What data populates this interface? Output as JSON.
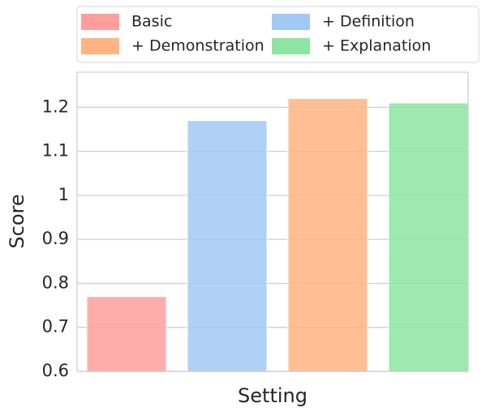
{
  "chart_data": {
    "type": "bar",
    "x_label": "Setting",
    "y_label": "Score",
    "categories": [
      null
    ],
    "series": [
      {
        "name": "Basic",
        "color": "#ff9f9b",
        "values": [
          0.77
        ]
      },
      {
        "name": "+ Definition",
        "color": "#a1c9f4",
        "values": [
          1.17
        ]
      },
      {
        "name": "+ Demonstration",
        "color": "#ffb482",
        "values": [
          1.22
        ]
      },
      {
        "name": "+ Explanation",
        "color": "#8de5a1",
        "values": [
          1.21
        ]
      }
    ],
    "ylim": [
      0.6,
      1.28
    ],
    "yticks": [
      0.6,
      0.7,
      0.8,
      0.9,
      1.0,
      1.1,
      1.2
    ],
    "grid": true,
    "legend": "top"
  }
}
